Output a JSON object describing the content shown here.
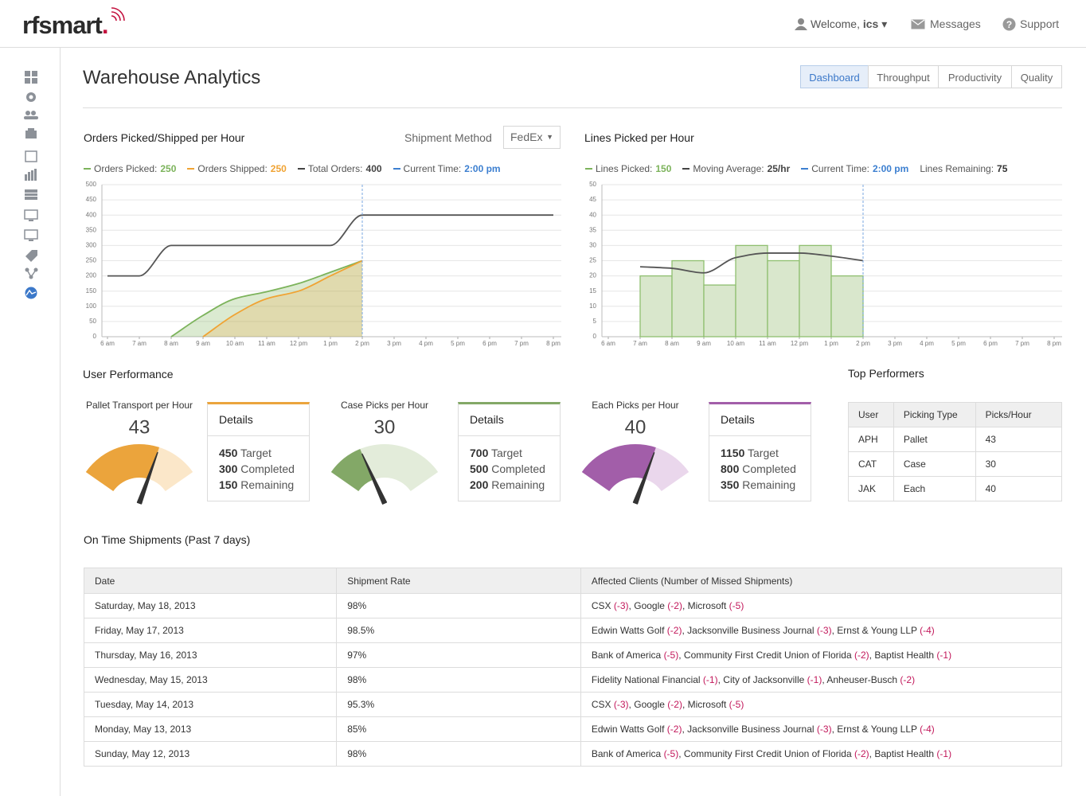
{
  "header": {
    "logo": "rfsmart",
    "logo_dot": ".",
    "welcome": "Welcome,",
    "user": "ics",
    "messages": "Messages",
    "support": "Support"
  },
  "title": "Warehouse Analytics",
  "tabs": [
    "Dashboard",
    "Throughput",
    "Productivity",
    "Quality"
  ],
  "active_tab": 0,
  "orders_chart": {
    "type": "line",
    "title": "Orders Picked/Shipped per Hour",
    "filter": {
      "label": "Shipment Method",
      "value": "FedEx"
    },
    "legend": [
      {
        "label": "Orders Picked:",
        "value": 250,
        "color": "#7cb35b",
        "line_style": "solid"
      },
      {
        "label": "Orders Shipped:",
        "value": 250,
        "color": "#f0a333",
        "line_style": "solid"
      },
      {
        "label": "Total Orders:",
        "value": 400,
        "color": "#444444",
        "line_style": "solid"
      },
      {
        "label": "Current Time:",
        "value": "2:00 pm",
        "color": "#3c7fd0",
        "line_style": "dashed"
      }
    ],
    "x": [
      6,
      7,
      8,
      9,
      10,
      11,
      12,
      13,
      14,
      15,
      16,
      17,
      18,
      19,
      20
    ],
    "xlim": [
      6,
      20
    ],
    "xticks": [
      {
        "value": 6,
        "label": "6 am"
      },
      {
        "value": 7,
        "label": "7 am"
      },
      {
        "value": 8,
        "label": "8 am"
      },
      {
        "value": 9,
        "label": "9 am"
      },
      {
        "value": 10,
        "label": "10 am"
      },
      {
        "value": 11,
        "label": "11 am"
      },
      {
        "value": 12,
        "label": "12 pm"
      },
      {
        "value": 13,
        "label": "1 pm"
      },
      {
        "value": 14,
        "label": "2 pm"
      },
      {
        "value": 15,
        "label": "3 pm"
      },
      {
        "value": 16,
        "label": "4 pm"
      },
      {
        "value": 17,
        "label": "5 pm"
      },
      {
        "value": 18,
        "label": "6 pm"
      },
      {
        "value": 19,
        "label": "7 pm"
      },
      {
        "value": 20,
        "label": "8 pm"
      }
    ],
    "ylim": [
      0,
      500
    ],
    "yticks": [
      0,
      50,
      100,
      150,
      200,
      250,
      300,
      350,
      400,
      450,
      500
    ],
    "grid": true,
    "series": [
      {
        "name": "Total Orders",
        "color": "#555555",
        "values": [
          200,
          200,
          300,
          300,
          300,
          300,
          300,
          300,
          400,
          400,
          400,
          400,
          400,
          400,
          400
        ]
      },
      {
        "name": "Orders Picked",
        "color": "#7cb35b",
        "fill": "rgba(124,179,91,0.28)",
        "values": [
          null,
          null,
          0,
          70,
          125,
          148,
          175,
          212,
          250,
          null,
          null,
          null,
          null,
          null,
          null
        ]
      },
      {
        "name": "Orders Shipped",
        "color": "#f0a333",
        "fill": "rgba(240,163,51,0.22)",
        "values": [
          null,
          null,
          null,
          0,
          73,
          125,
          150,
          200,
          250,
          null,
          null,
          null,
          null,
          null,
          null
        ]
      }
    ],
    "current_time": {
      "x": 14,
      "color": "#7aa7e0"
    }
  },
  "lines_chart": {
    "type": "bar",
    "title": "Lines Picked per Hour",
    "legend": [
      {
        "label": "Lines Picked:",
        "value": 150,
        "color": "#7cb35b",
        "line_style": "solid"
      },
      {
        "label": "Moving Average:",
        "value": "25/hr",
        "color": "#444444",
        "line_style": "solid"
      },
      {
        "label": "Current Time:",
        "value": "2:00 pm",
        "color": "#3c7fd0",
        "line_style": "dashed"
      },
      {
        "label": "Lines Remaining:",
        "value": 75,
        "color": "#333333",
        "line_style": "none"
      }
    ],
    "xlim": [
      6,
      20
    ],
    "xticks": [
      {
        "value": 6,
        "label": "6 am"
      },
      {
        "value": 7,
        "label": "7 am"
      },
      {
        "value": 8,
        "label": "8 am"
      },
      {
        "value": 9,
        "label": "9 am"
      },
      {
        "value": 10,
        "label": "10 am"
      },
      {
        "value": 11,
        "label": "11 am"
      },
      {
        "value": 12,
        "label": "12 pm"
      },
      {
        "value": 13,
        "label": "1 pm"
      },
      {
        "value": 14,
        "label": "2 pm"
      },
      {
        "value": 15,
        "label": "3 pm"
      },
      {
        "value": 16,
        "label": "4 pm"
      },
      {
        "value": 17,
        "label": "5 pm"
      },
      {
        "value": 18,
        "label": "6 pm"
      },
      {
        "value": 19,
        "label": "7 pm"
      },
      {
        "value": 20,
        "label": "8 pm"
      }
    ],
    "ylim": [
      0,
      50
    ],
    "yticks": [
      0,
      5,
      10,
      15,
      20,
      25,
      30,
      35,
      40,
      45,
      50
    ],
    "grid": true,
    "bins": [
      7,
      8,
      9,
      10,
      11,
      12,
      13,
      14
    ],
    "values": [
      20,
      25,
      17,
      30,
      25,
      30,
      20
    ],
    "color": "#8fbf6f",
    "fill": "#d9e7cc",
    "series": [
      {
        "name": "Moving Average",
        "color": "#555555",
        "x": [
          7,
          8,
          9,
          10,
          11,
          12,
          13,
          14
        ],
        "values": [
          23,
          22.5,
          21,
          26,
          27.5,
          27.5,
          26.5,
          25
        ]
      }
    ],
    "current_time": {
      "x": 14,
      "color": "#7aa7e0"
    }
  },
  "user_performance": {
    "title": "User Performance",
    "gauges": [
      {
        "title": "Pallet Transport per Hour",
        "value": 43,
        "range": [
          0,
          65
        ],
        "color": "#eba43c",
        "track_color": "#fbe7c9",
        "details": {
          "title": "Details",
          "rows": [
            {
              "value": 450,
              "label": "Target"
            },
            {
              "value": 300,
              "label": "Completed"
            },
            {
              "value": 150,
              "label": "Remaining"
            }
          ]
        }
      },
      {
        "title": "Case Picks per Hour",
        "value": 30,
        "range": [
          0,
          100
        ],
        "color": "#83a867",
        "track_color": "#e3ecda",
        "details": {
          "title": "Details",
          "rows": [
            {
              "value": 700,
              "label": "Target"
            },
            {
              "value": 500,
              "label": "Completed"
            },
            {
              "value": 200,
              "label": "Remaining"
            }
          ]
        }
      },
      {
        "title": "Each Picks per Hour",
        "value": 40,
        "range": [
          0,
          60
        ],
        "color": "#a25ea9",
        "track_color": "#ead7ec",
        "details": {
          "title": "Details",
          "rows": [
            {
              "value": 1150,
              "label": "Target"
            },
            {
              "value": 800,
              "label": "Completed"
            },
            {
              "value": 350,
              "label": "Remaining"
            }
          ]
        }
      }
    ]
  },
  "top_performers": {
    "title": "Top Performers",
    "headers": [
      "User",
      "Picking Type",
      "Picks/Hour"
    ],
    "rows": [
      [
        "APH",
        "Pallet",
        43
      ],
      [
        "CAT",
        "Case",
        30
      ],
      [
        "JAK",
        "Each",
        40
      ]
    ]
  },
  "shipments": {
    "title": "On Time Shipments (Past 7 days)",
    "headers": [
      "Date",
      "Shipment Rate",
      "Affected Clients (Number of Missed Shipments)"
    ],
    "separator": ",",
    "rows": [
      {
        "date": "Saturday, May 18, 2013",
        "rate": "98%",
        "clients": [
          {
            "name": "CSX",
            "missed": "(-3)"
          },
          {
            "name": "Google",
            "missed": "(-2)"
          },
          {
            "name": "Microsoft",
            "missed": "(-5)"
          }
        ]
      },
      {
        "date": "Friday, May 17, 2013",
        "rate": "98.5%",
        "clients": [
          {
            "name": "Edwin Watts Golf",
            "missed": "(-2)"
          },
          {
            "name": "Jacksonville Business Journal",
            "missed": "(-3)"
          },
          {
            "name": "Ernst & Young LLP",
            "missed": "(-4)"
          }
        ]
      },
      {
        "date": "Thursday, May 16, 2013",
        "rate": "97%",
        "clients": [
          {
            "name": "Bank of America",
            "missed": "(-5)"
          },
          {
            "name": "Community First Credit Union of Florida",
            "missed": "(-2)"
          },
          {
            "name": "Baptist Health",
            "missed": "(-1)"
          }
        ]
      },
      {
        "date": "Wednesday, May 15, 2013",
        "rate": "98%",
        "clients": [
          {
            "name": "Fidelity National Financial",
            "missed": "(-1)"
          },
          {
            "name": "City of Jacksonville",
            "missed": "(-1)"
          },
          {
            "name": "Anheuser-Busch",
            "missed": "(-2)"
          }
        ]
      },
      {
        "date": "Tuesday, May 14, 2013",
        "rate": "95.3%",
        "clients": [
          {
            "name": "CSX",
            "missed": "(-3)"
          },
          {
            "name": "Google",
            "missed": "(-2)"
          },
          {
            "name": "Microsoft",
            "missed": "(-5)"
          }
        ]
      },
      {
        "date": "Monday, May 13, 2013",
        "rate": "85%",
        "clients": [
          {
            "name": "Edwin Watts Golf",
            "missed": "(-2)"
          },
          {
            "name": "Jacksonville Business Journal",
            "missed": "(-3)"
          },
          {
            "name": "Ernst & Young LLP",
            "missed": "(-4)"
          }
        ]
      },
      {
        "date": "Sunday, May 12, 2013",
        "rate": "98%",
        "clients": [
          {
            "name": "Bank of America",
            "missed": "(-5)"
          },
          {
            "name": "Community First Credit Union of Florida",
            "missed": "(-2)"
          },
          {
            "name": "Baptist Health",
            "missed": "(-1)"
          }
        ]
      }
    ]
  }
}
